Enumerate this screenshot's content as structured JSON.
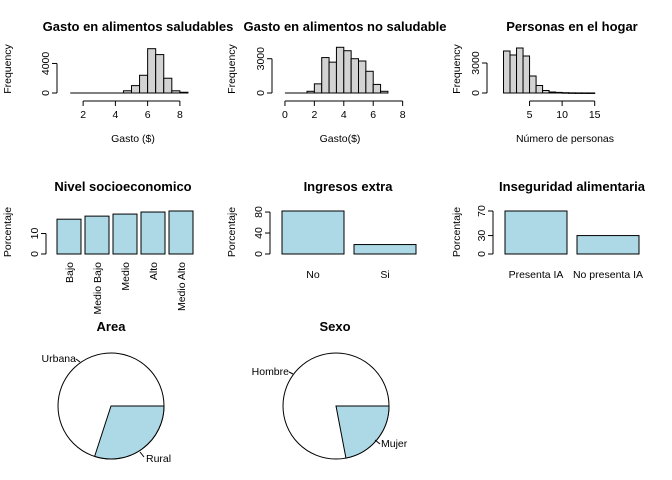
{
  "style": {
    "hist_fill": "#d3d3d3",
    "bar_fill": "#add8e6",
    "pie_white": "#ffffff",
    "stroke": "#000000"
  },
  "chart_data": [
    {
      "type": "bar",
      "subtype": "histogram",
      "title": "Gasto en alimentos saludables",
      "xlabel": "Gasto ($)",
      "ylabel": "Frequency",
      "xlim": [
        1,
        9
      ],
      "ylim": [
        0,
        6500
      ],
      "xticks": [
        2,
        4,
        6,
        8
      ],
      "yticks": [
        0,
        4000
      ],
      "bins": [
        [
          4.5,
          5.0,
          300
        ],
        [
          5.0,
          5.5,
          1000
        ],
        [
          5.5,
          6.0,
          2400
        ],
        [
          6.0,
          6.5,
          6000
        ],
        [
          6.5,
          7.0,
          5200
        ],
        [
          7.0,
          7.5,
          2000
        ],
        [
          7.5,
          8.0,
          300
        ],
        [
          8.0,
          8.5,
          100
        ]
      ],
      "baseline_range": [
        1.2,
        8.5
      ]
    },
    {
      "type": "bar",
      "subtype": "histogram",
      "title": "Gasto en alimentos no saludable",
      "xlabel": "Gasto($)",
      "ylabel": "Frequency",
      "xlim": [
        -0.2,
        8.5
      ],
      "ylim": [
        0,
        4200
      ],
      "xticks": [
        0,
        2,
        4,
        6,
        8
      ],
      "yticks": [
        0,
        3000
      ],
      "bins": [
        [
          1.5,
          2.0,
          150
        ],
        [
          2.0,
          2.5,
          800
        ],
        [
          2.5,
          3.0,
          3100
        ],
        [
          3.0,
          3.5,
          2700
        ],
        [
          3.5,
          4.0,
          4000
        ],
        [
          4.0,
          4.5,
          3700
        ],
        [
          4.5,
          5.0,
          3000
        ],
        [
          5.0,
          5.5,
          2800
        ],
        [
          5.5,
          6.0,
          1900
        ],
        [
          6.0,
          6.5,
          750
        ],
        [
          6.5,
          7.0,
          150
        ]
      ],
      "baseline_range": [
        0,
        7
      ]
    },
    {
      "type": "bar",
      "subtype": "histogram",
      "title": "Personas en el hogar",
      "xlabel": "Número de personas",
      "ylabel": "Frequency",
      "xlim": [
        0,
        19.5
      ],
      "ylim": [
        0,
        4800
      ],
      "xticks": [
        5,
        10,
        15
      ],
      "yticks": [
        0,
        3000
      ],
      "bins": [
        [
          1,
          2,
          4200
        ],
        [
          2,
          3,
          3800
        ],
        [
          3,
          4,
          4500
        ],
        [
          4,
          5,
          3700
        ],
        [
          5,
          6,
          1700
        ],
        [
          6,
          7,
          750
        ],
        [
          7,
          8,
          250
        ],
        [
          8,
          9,
          100
        ],
        [
          9,
          10,
          60
        ],
        [
          10,
          11,
          30
        ],
        [
          11,
          12,
          15
        ],
        [
          12,
          13,
          10
        ],
        [
          13,
          14,
          8
        ],
        [
          14,
          15,
          5
        ]
      ],
      "baseline_range": [
        1,
        15
      ]
    },
    {
      "type": "bar",
      "title": "Nivel socioeconomico",
      "ylabel": "Porcentaje",
      "categories": [
        "Bajo",
        "Medio Bajo",
        "Medio",
        "Alto",
        "Medio Alto"
      ],
      "values": [
        17,
        18.5,
        19.5,
        20.5,
        21
      ],
      "ylim": [
        0,
        21
      ],
      "yticks": [
        0,
        10
      ]
    },
    {
      "type": "bar",
      "title": "Ingresos extra",
      "ylabel": "Porcentaje",
      "categories": [
        "No",
        "Si"
      ],
      "values": [
        82,
        18
      ],
      "ylim": [
        0,
        82
      ],
      "yticks": [
        0,
        40,
        80
      ]
    },
    {
      "type": "bar",
      "title": "Inseguridad alimentaria",
      "ylabel": "Porcentaje",
      "categories": [
        "Presenta IA",
        "No presenta IA"
      ],
      "values": [
        70,
        30
      ],
      "ylim": [
        0,
        70
      ],
      "yticks": [
        0,
        30,
        70
      ]
    },
    {
      "type": "pie",
      "title": "Area",
      "labels": [
        "Rural",
        "Urbana"
      ],
      "values": [
        30,
        70
      ]
    },
    {
      "type": "pie",
      "title": "Sexo",
      "labels": [
        "Mujer",
        "Hombre"
      ],
      "values": [
        22,
        78
      ]
    }
  ]
}
